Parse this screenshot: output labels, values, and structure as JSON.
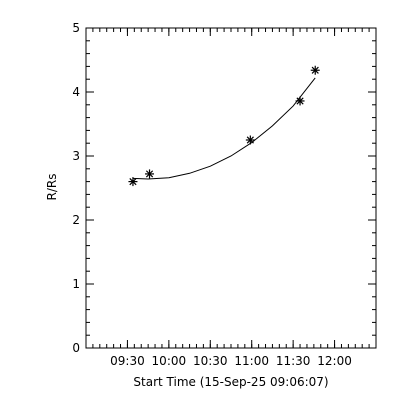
{
  "chart_data": {
    "type": "scatter",
    "xlabel": "Start Time (15-Sep-25 09:06:07)",
    "ylabel": "R/Rs",
    "xlim": [
      "09:00",
      "12:30"
    ],
    "ylim": [
      0,
      5
    ],
    "x_ticks": [
      "09:30",
      "10:00",
      "10:30",
      "11:00",
      "11:30",
      "12:00"
    ],
    "y_ticks": [
      0,
      1,
      2,
      3,
      4,
      5
    ],
    "grid": false,
    "series": [
      {
        "marker": "asterisk",
        "x": [
          "09:34",
          "09:46",
          "10:59",
          "11:35",
          "11:46"
        ],
        "y": [
          2.6,
          2.72,
          3.25,
          3.86,
          4.34
        ]
      }
    ],
    "fit_curve": {
      "type": "polynomial",
      "x": [
        "09:34",
        "09:45",
        "10:00",
        "10:15",
        "10:30",
        "10:45",
        "11:00",
        "11:15",
        "11:30",
        "11:46"
      ],
      "y": [
        2.65,
        2.64,
        2.66,
        2.73,
        2.84,
        3.0,
        3.21,
        3.47,
        3.78,
        4.22
      ]
    }
  }
}
